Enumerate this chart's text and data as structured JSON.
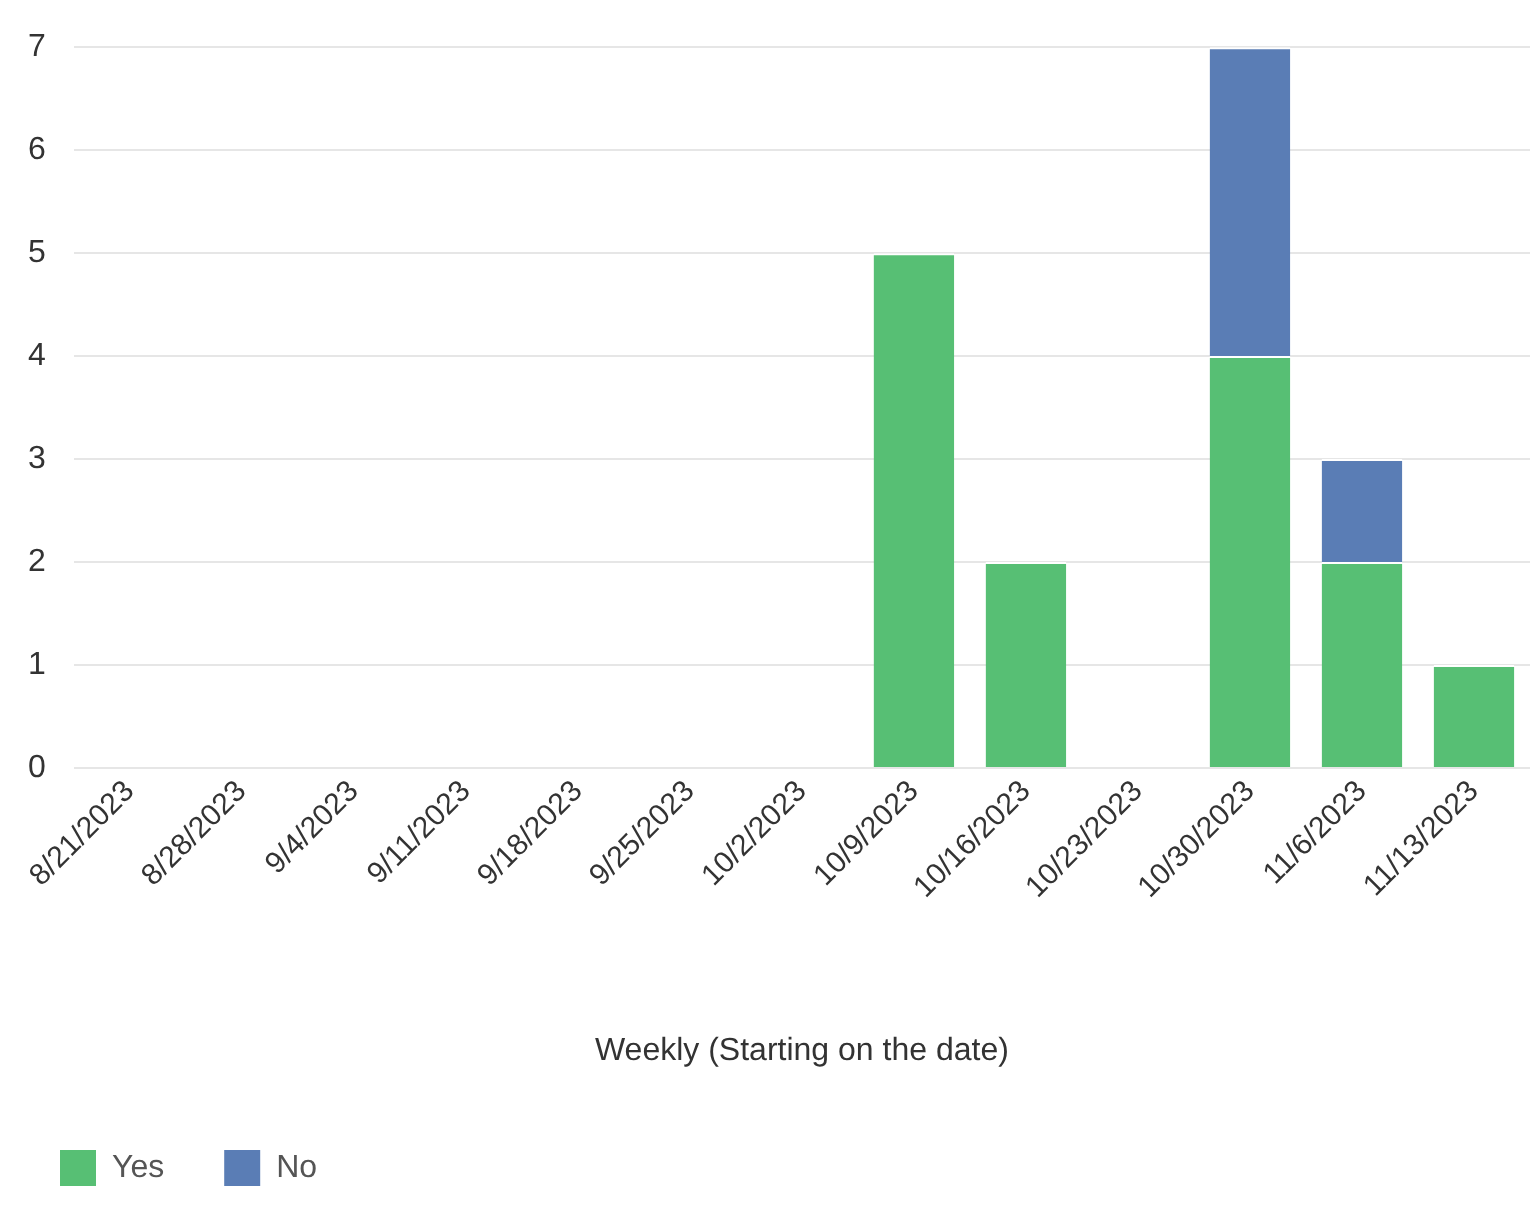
{
  "chart_data": {
    "type": "bar",
    "stacked": true,
    "xlabel": "Weekly (Starting on the date)",
    "categories": [
      "8/21/2023",
      "8/28/2023",
      "9/4/2023",
      "9/11/2023",
      "9/18/2023",
      "9/25/2023",
      "10/2/2023",
      "10/9/2023",
      "10/16/2023",
      "10/23/2023",
      "10/30/2023",
      "11/6/2023",
      "11/13/2023"
    ],
    "series": [
      {
        "name": "Yes",
        "color": "#57bf74",
        "values": [
          0,
          0,
          0,
          0,
          0,
          0,
          0,
          5,
          2,
          0,
          4,
          2,
          1
        ]
      },
      {
        "name": "No",
        "color": "#5a7db5",
        "values": [
          0,
          0,
          0,
          0,
          0,
          0,
          0,
          0,
          0,
          0,
          3,
          1,
          0
        ]
      }
    ],
    "ylim": [
      0,
      7
    ],
    "yticks": [
      0,
      1,
      2,
      3,
      4,
      5,
      6,
      7
    ],
    "grid": "y",
    "legend": "bottom left"
  }
}
